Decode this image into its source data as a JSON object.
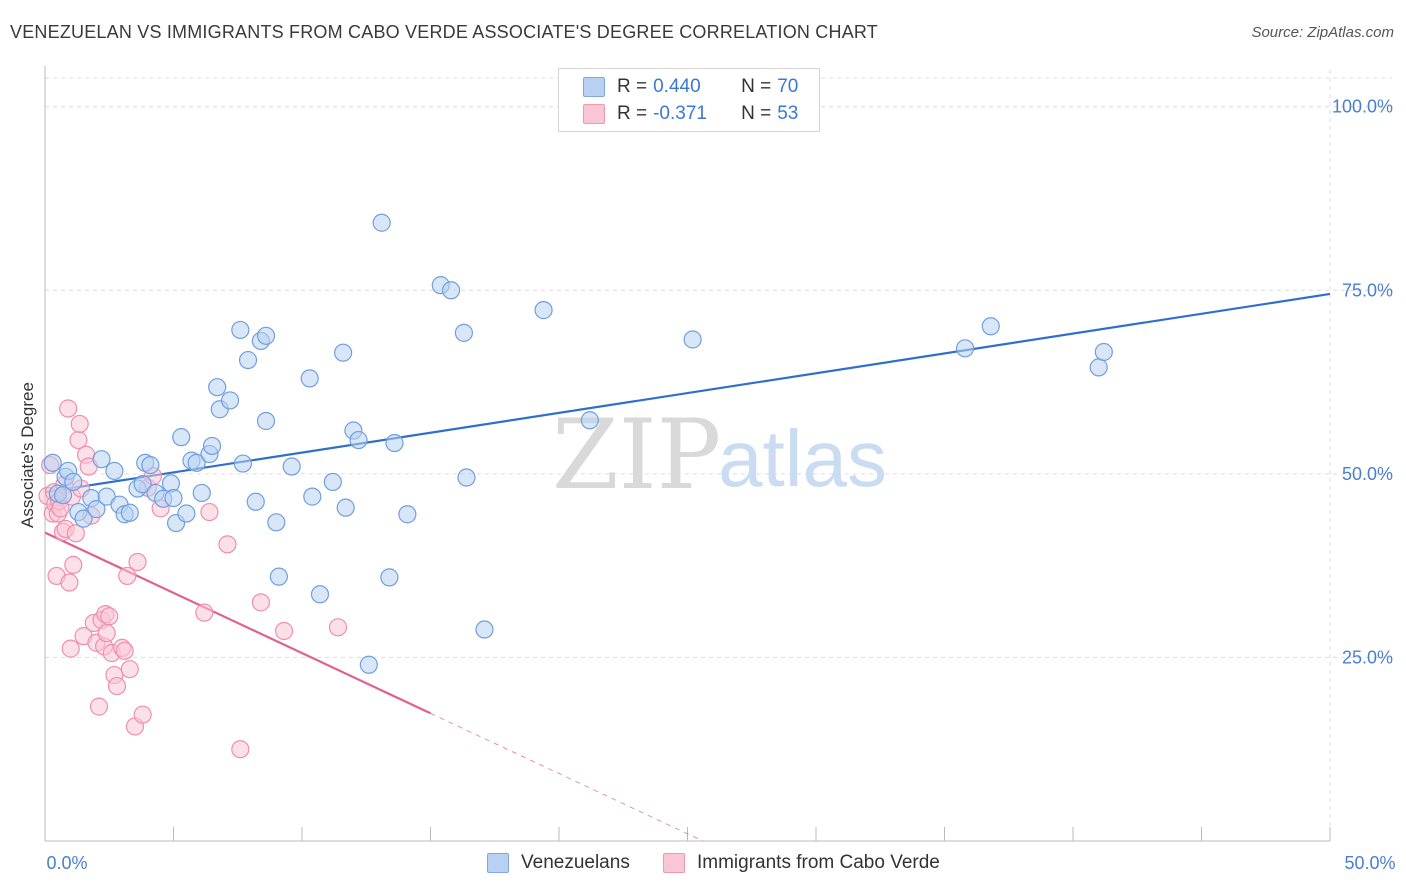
{
  "header": {
    "title": "VENEZUELAN VS IMMIGRANTS FROM CABO VERDE ASSOCIATE'S DEGREE CORRELATION CHART",
    "source": "Source: ZipAtlas.com"
  },
  "watermark": {
    "zip": "ZIP",
    "atlas": "atlas"
  },
  "legend_top": [
    {
      "r_label": "R = ",
      "r_value": "0.440",
      "n_label": "N = ",
      "n_value": "70",
      "color": "#b8d1f3"
    },
    {
      "r_label": "R = ",
      "r_value": "-0.371",
      "n_label": "N = ",
      "n_value": "53",
      "color": "#f9c6d6"
    }
  ],
  "legend_bottom": [
    {
      "label": "Venezuelans",
      "color": "#b8d1f3"
    },
    {
      "label": "Immigrants from Cabo Verde",
      "color": "#f9c6d6"
    }
  ],
  "chart_data": {
    "type": "scatter",
    "title": "VENEZUELAN VS IMMIGRANTS FROM CABO VERDE ASSOCIATE'S DEGREE CORRELATION CHART",
    "xlabel": "",
    "ylabel": "Associate's Degree",
    "xlim": [
      0,
      50
    ],
    "ylim": [
      0,
      105
    ],
    "x_tick_labels": [
      "0.0%",
      "50.0%"
    ],
    "y_tick_labels": [
      "100.0%",
      "75.0%",
      "50.0%",
      "25.0%"
    ],
    "y_ticks": [
      100,
      75,
      50,
      25
    ],
    "grid": true,
    "legend_position": "top-center",
    "series": [
      {
        "name": "Venezuelans",
        "color": "#6f9fe0",
        "fill": "#b8d1f3",
        "trend": {
          "x": [
            0,
            50
          ],
          "y": [
            47.5,
            74.5
          ],
          "color": "#2f6fcc"
        },
        "points": [
          [
            0.3,
            51.5
          ],
          [
            0.5,
            47.3
          ],
          [
            0.7,
            47.1
          ],
          [
            0.8,
            49.6
          ],
          [
            0.9,
            50.4
          ],
          [
            1.1,
            48.9
          ],
          [
            1.3,
            44.8
          ],
          [
            1.5,
            43.9
          ],
          [
            1.8,
            46.7
          ],
          [
            2.0,
            45.2
          ],
          [
            2.2,
            52.0
          ],
          [
            2.4,
            46.9
          ],
          [
            2.7,
            50.4
          ],
          [
            2.9,
            45.8
          ],
          [
            3.1,
            44.5
          ],
          [
            3.3,
            44.7
          ],
          [
            3.6,
            48.0
          ],
          [
            3.8,
            48.6
          ],
          [
            3.9,
            51.5
          ],
          [
            4.1,
            51.2
          ],
          [
            4.3,
            47.4
          ],
          [
            4.6,
            46.6
          ],
          [
            4.9,
            48.7
          ],
          [
            5.0,
            46.7
          ],
          [
            5.1,
            43.3
          ],
          [
            5.3,
            55.0
          ],
          [
            5.5,
            44.6
          ],
          [
            5.7,
            51.8
          ],
          [
            5.9,
            51.5
          ],
          [
            6.1,
            47.4
          ],
          [
            6.4,
            52.7
          ],
          [
            6.5,
            53.8
          ],
          [
            6.7,
            61.8
          ],
          [
            6.8,
            58.8
          ],
          [
            7.2,
            60.0
          ],
          [
            7.6,
            69.6
          ],
          [
            7.7,
            51.4
          ],
          [
            7.9,
            65.5
          ],
          [
            8.2,
            46.2
          ],
          [
            8.4,
            68.1
          ],
          [
            8.6,
            68.8
          ],
          [
            8.6,
            57.2
          ],
          [
            9.0,
            43.4
          ],
          [
            9.1,
            36.0
          ],
          [
            9.6,
            51.0
          ],
          [
            10.3,
            63.0
          ],
          [
            10.4,
            46.9
          ],
          [
            10.7,
            33.6
          ],
          [
            11.2,
            48.9
          ],
          [
            11.6,
            66.5
          ],
          [
            11.7,
            45.4
          ],
          [
            12.0,
            55.9
          ],
          [
            12.2,
            54.6
          ],
          [
            12.6,
            24.0
          ],
          [
            13.1,
            84.2
          ],
          [
            13.4,
            35.9
          ],
          [
            13.6,
            54.2
          ],
          [
            14.1,
            44.5
          ],
          [
            15.4,
            75.7
          ],
          [
            15.8,
            75.0
          ],
          [
            16.3,
            69.2
          ],
          [
            16.4,
            49.5
          ],
          [
            17.1,
            28.8
          ],
          [
            19.4,
            72.3
          ],
          [
            21.2,
            57.3
          ],
          [
            25.2,
            68.3
          ],
          [
            35.8,
            67.1
          ],
          [
            36.8,
            70.1
          ],
          [
            41.0,
            64.5
          ],
          [
            41.2,
            66.6
          ]
        ]
      },
      {
        "name": "Immigrants from Cabo Verde",
        "color": "#ee8fb0",
        "fill": "#f9c6d6",
        "trend": {
          "x": [
            0,
            25.6
          ],
          "y": [
            42.0,
            0
          ],
          "dashed_from_x": 15,
          "color": "#e06090"
        },
        "points": [
          [
            0.1,
            47.0
          ],
          [
            0.2,
            51.2
          ],
          [
            0.3,
            44.6
          ],
          [
            0.35,
            47.5
          ],
          [
            0.4,
            45.9
          ],
          [
            0.45,
            36.1
          ],
          [
            0.5,
            44.6
          ],
          [
            0.55,
            46.3
          ],
          [
            0.6,
            45.3
          ],
          [
            0.7,
            42.1
          ],
          [
            0.75,
            48.5
          ],
          [
            0.8,
            42.5
          ],
          [
            0.9,
            58.9
          ],
          [
            0.95,
            35.2
          ],
          [
            1.0,
            26.2
          ],
          [
            1.05,
            46.9
          ],
          [
            1.1,
            37.6
          ],
          [
            1.2,
            41.9
          ],
          [
            1.3,
            54.6
          ],
          [
            1.35,
            56.8
          ],
          [
            1.4,
            48.0
          ],
          [
            1.5,
            27.9
          ],
          [
            1.6,
            52.6
          ],
          [
            1.7,
            51.0
          ],
          [
            1.8,
            44.3
          ],
          [
            1.9,
            29.7
          ],
          [
            2.0,
            27.0
          ],
          [
            2.1,
            18.3
          ],
          [
            2.2,
            30.1
          ],
          [
            2.3,
            26.5
          ],
          [
            2.35,
            30.9
          ],
          [
            2.4,
            28.3
          ],
          [
            2.5,
            30.6
          ],
          [
            2.6,
            25.6
          ],
          [
            2.7,
            22.6
          ],
          [
            2.8,
            21.1
          ],
          [
            3.0,
            26.3
          ],
          [
            3.1,
            25.9
          ],
          [
            3.2,
            36.1
          ],
          [
            3.3,
            23.4
          ],
          [
            3.5,
            15.6
          ],
          [
            3.6,
            38.0
          ],
          [
            3.8,
            17.2
          ],
          [
            4.0,
            48.1
          ],
          [
            4.2,
            49.7
          ],
          [
            4.5,
            45.3
          ],
          [
            6.2,
            31.1
          ],
          [
            6.4,
            44.8
          ],
          [
            7.1,
            40.4
          ],
          [
            7.6,
            12.5
          ],
          [
            8.4,
            32.5
          ],
          [
            9.3,
            28.6
          ],
          [
            11.4,
            29.1
          ]
        ]
      }
    ]
  }
}
